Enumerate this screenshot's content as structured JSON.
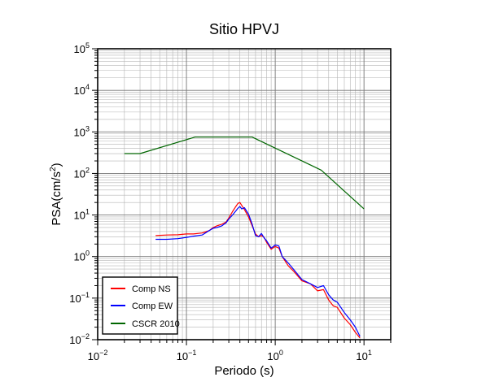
{
  "chart_data": {
    "type": "line",
    "title": "Sitio HPVJ",
    "xlabel": "Periodo (s)",
    "ylabel": {
      "base": "PSA(cm/s",
      "sup": "2",
      "tail": ")"
    },
    "x_scale": "log",
    "y_scale": "log",
    "xlim": [
      0.01,
      20
    ],
    "ylim": [
      0.01,
      100000
    ],
    "x_ticks": [
      {
        "value": 0.01,
        "base": "10",
        "exp": "−2"
      },
      {
        "value": 0.1,
        "base": "10",
        "exp": "−1"
      },
      {
        "value": 1,
        "base": "10",
        "exp": "0"
      },
      {
        "value": 10,
        "base": "10",
        "exp": "1"
      }
    ],
    "y_ticks": [
      {
        "value": 0.01,
        "base": "10",
        "exp": "−2"
      },
      {
        "value": 0.1,
        "base": "10",
        "exp": "−1"
      },
      {
        "value": 1,
        "base": "10",
        "exp": "0"
      },
      {
        "value": 10,
        "base": "10",
        "exp": "1"
      },
      {
        "value": 100,
        "base": "10",
        "exp": "2"
      },
      {
        "value": 1000,
        "base": "10",
        "exp": "3"
      },
      {
        "value": 10000,
        "base": "10",
        "exp": "4"
      },
      {
        "value": 100000,
        "base": "10",
        "exp": "5"
      }
    ],
    "grid": true,
    "legend_position": "bottom-left",
    "series": [
      {
        "name": "Comp NS",
        "color": "#ff0000",
        "x": [
          0.045,
          0.06,
          0.08,
          0.1,
          0.12,
          0.15,
          0.18,
          0.2,
          0.22,
          0.25,
          0.28,
          0.3,
          0.33,
          0.36,
          0.38,
          0.4,
          0.42,
          0.45,
          0.5,
          0.55,
          0.6,
          0.65,
          0.7,
          0.75,
          0.8,
          0.9,
          1.0,
          1.1,
          1.2,
          1.4,
          1.6,
          2.0,
          2.5,
          3.0,
          3.5,
          4.0,
          4.5,
          5.0,
          6.0,
          7.0,
          8.0,
          9.0
        ],
        "y": [
          3.2,
          3.3,
          3.35,
          3.5,
          3.5,
          3.7,
          4.2,
          5.0,
          5.5,
          6.0,
          6.8,
          8.5,
          12.0,
          16.0,
          19.0,
          20.0,
          17.0,
          13.5,
          9.0,
          5.5,
          3.5,
          3.0,
          3.2,
          2.9,
          2.2,
          1.5,
          1.75,
          1.6,
          1.0,
          0.6,
          0.45,
          0.26,
          0.22,
          0.15,
          0.16,
          0.09,
          0.065,
          0.06,
          0.033,
          0.023,
          0.015,
          0.011
        ]
      },
      {
        "name": "Comp EW",
        "color": "#0000ff",
        "x": [
          0.045,
          0.06,
          0.08,
          0.1,
          0.12,
          0.15,
          0.18,
          0.2,
          0.22,
          0.25,
          0.28,
          0.3,
          0.33,
          0.36,
          0.38,
          0.4,
          0.42,
          0.45,
          0.5,
          0.55,
          0.6,
          0.65,
          0.7,
          0.75,
          0.8,
          0.9,
          1.0,
          1.1,
          1.2,
          1.4,
          1.6,
          2.0,
          2.5,
          3.0,
          3.5,
          4.0,
          4.5,
          5.0,
          6.0,
          7.0,
          8.0,
          9.0
        ],
        "y": [
          2.6,
          2.6,
          2.7,
          2.9,
          3.1,
          3.3,
          4.2,
          4.8,
          5.0,
          5.5,
          6.5,
          8.0,
          10.0,
          12.5,
          14.5,
          16.0,
          14.0,
          15.0,
          10.5,
          6.0,
          3.2,
          3.0,
          3.6,
          2.8,
          2.4,
          1.6,
          1.9,
          1.8,
          1.0,
          0.7,
          0.5,
          0.28,
          0.22,
          0.18,
          0.2,
          0.12,
          0.09,
          0.08,
          0.045,
          0.03,
          0.02,
          0.012
        ]
      },
      {
        "name": "CSCR 2010",
        "color": "#006600",
        "x": [
          0.02,
          0.03,
          0.125,
          0.55,
          3.3,
          10.0
        ],
        "y": [
          300,
          300,
          750,
          750,
          120,
          14
        ]
      }
    ]
  }
}
